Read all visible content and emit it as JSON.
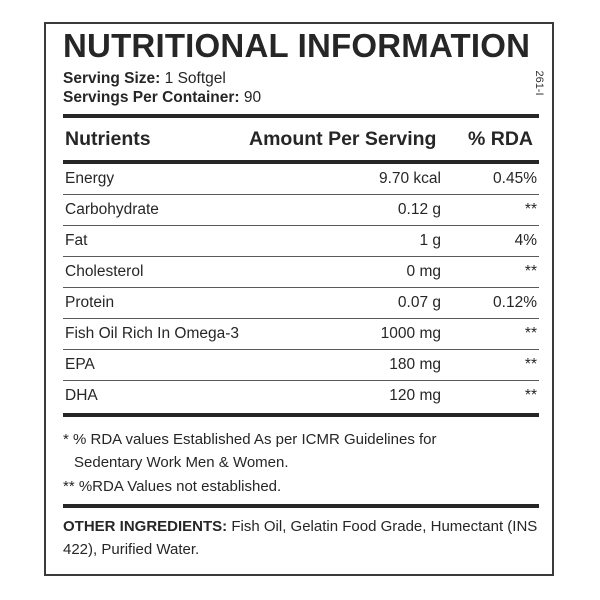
{
  "label": {
    "title": "NUTRITIONAL INFORMATION",
    "serving_size_label": "Serving Size:",
    "serving_size_value": "1 Softgel",
    "servings_per_container_label": "Servings Per Container:",
    "servings_per_container_value": "90",
    "side_code": "261-I"
  },
  "table": {
    "headers": [
      "Nutrients",
      "Amount Per Serving",
      "% RDA"
    ],
    "rows": [
      {
        "nutrient": "Energy",
        "amount": "9.70 kcal",
        "rda": "0.45%"
      },
      {
        "nutrient": "Carbohydrate",
        "amount": "0.12 g",
        "rda": "**"
      },
      {
        "nutrient": "Fat",
        "amount": "1 g",
        "rda": "4%"
      },
      {
        "nutrient": "Cholesterol",
        "amount": "0 mg",
        "rda": "**"
      },
      {
        "nutrient": "Protein",
        "amount": "0.07 g",
        "rda": "0.12%"
      },
      {
        "nutrient": "Fish Oil Rich In Omega-3",
        "amount": "1000 mg",
        "rda": "**"
      },
      {
        "nutrient": "EPA",
        "amount": "180 mg",
        "rda": "**"
      },
      {
        "nutrient": "DHA",
        "amount": "120 mg",
        "rda": "**"
      }
    ]
  },
  "footnotes": {
    "line1": "* % RDA values Established As per ICMR Guidelines for",
    "line2": "Sedentary Work Men & Women.",
    "line3": "** %RDA Values not established."
  },
  "other_ingredients": {
    "label": "OTHER INGREDIENTS:",
    "text": "Fish Oil, Gelatin Food Grade, Humectant (INS 422),  Purified Water."
  },
  "colors": {
    "text": "#262626",
    "border": "#3a3a3a",
    "background": "#ffffff"
  }
}
